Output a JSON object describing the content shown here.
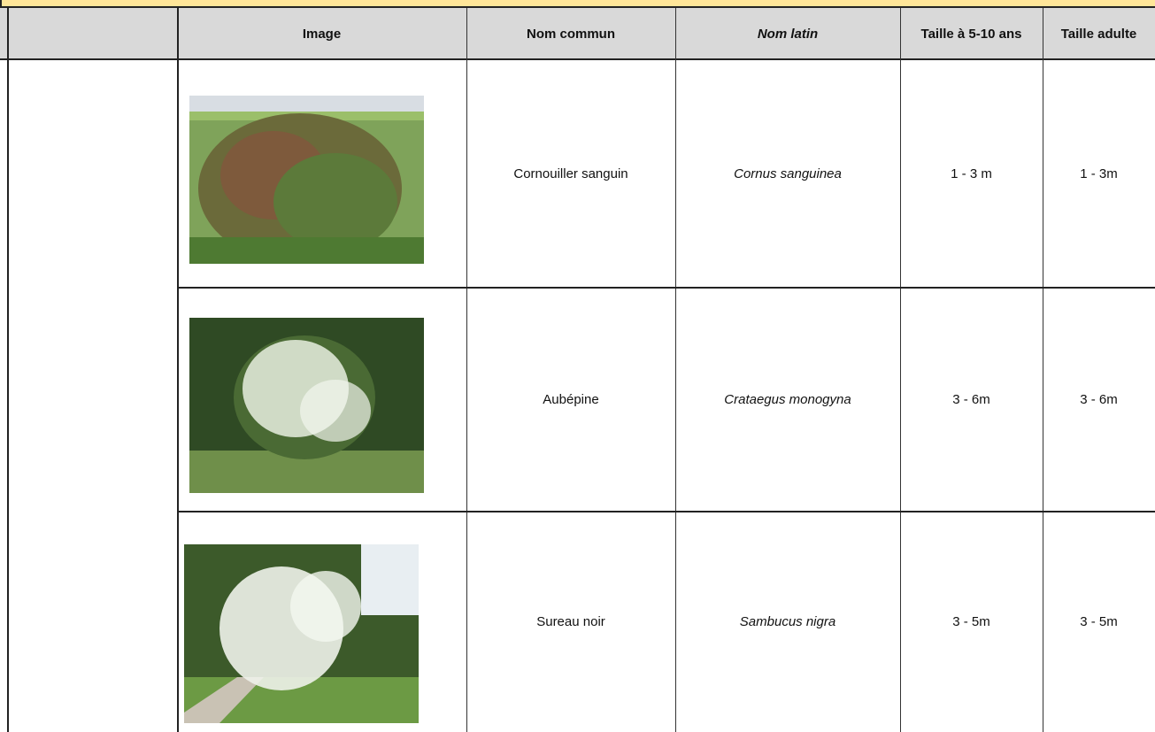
{
  "table": {
    "header": [
      "Image",
      "Nom commun",
      "Nom latin",
      "Taille à 5-10 ans",
      "Taille adulte"
    ],
    "rows": [
      [
        "Cornouiller sanguin",
        "Cornus sanguinea",
        "1 - 3 m",
        "1 - 3m"
      ],
      [
        "Aubépine",
        "Crataegus monogyna",
        "3 - 6m",
        "3 - 6m"
      ],
      [
        "Sureau noir",
        "Sambucus nigra",
        "3 - 5m",
        "3 - 5m"
      ]
    ]
  }
}
